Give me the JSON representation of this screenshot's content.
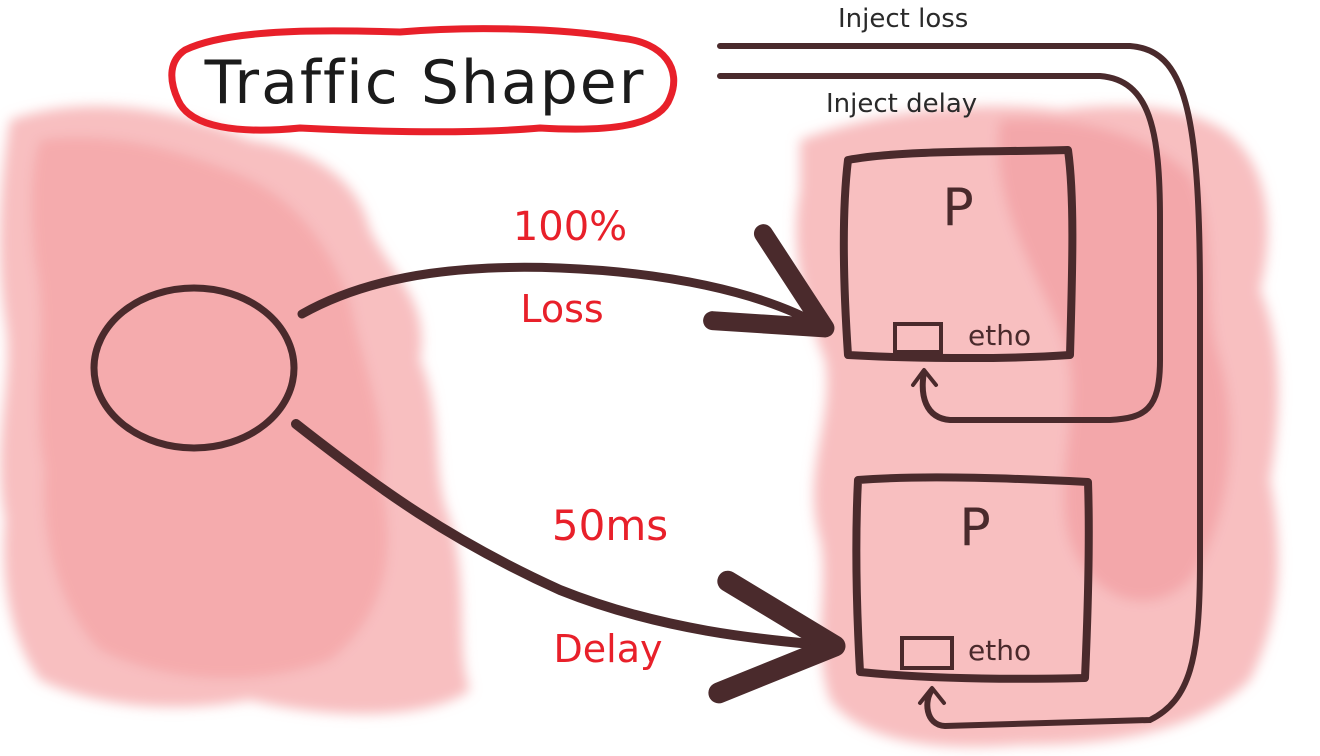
{
  "title": "Traffic Shaper",
  "annotations": {
    "inject_loss": "Inject loss",
    "inject_delay": "Inject delay"
  },
  "links": {
    "top": {
      "value": "100%",
      "label": "Loss"
    },
    "bottom": {
      "value": "50ms",
      "label": "Delay"
    }
  },
  "pods": [
    {
      "name": "P",
      "interface": "etho"
    },
    {
      "name": "P",
      "interface": "etho"
    }
  ],
  "colors": {
    "wash": "#f6a9ab",
    "ink": "#4a2a2c",
    "accent_red": "#e8202a"
  }
}
